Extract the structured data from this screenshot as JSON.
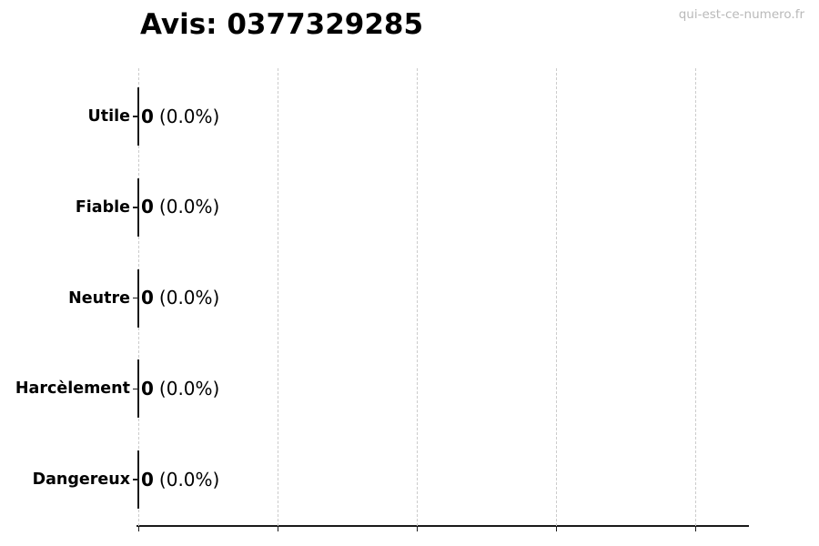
{
  "header": {
    "title": "Avis: 0377329285",
    "watermark": "qui-est-ce-numero.fr"
  },
  "chart_data": {
    "type": "bar",
    "orientation": "horizontal",
    "title": "Avis: 0377329285",
    "categories": [
      "Utile",
      "Fiable",
      "Neutre",
      "Harcèlement",
      "Dangereux"
    ],
    "values": [
      0,
      0,
      0,
      0,
      0
    ],
    "percents": [
      "0.0%",
      "0.0%",
      "0.0%",
      "0.0%",
      "0.0%"
    ],
    "value_labels": [
      "0 (0.0%)",
      "0 (0.0%)",
      "0 (0.0%)",
      "0 (0.0%)",
      "0 (0.0%)"
    ],
    "xlabel": "",
    "ylabel": "",
    "xlim": [
      0,
      1
    ],
    "x_tick_count": 5,
    "x_tick_labels_visible": false,
    "grid": {
      "axis": "x",
      "style": "dashed",
      "color": "#cccccc"
    },
    "legend": null,
    "bar_color": "#1a1a1a"
  },
  "colors": {
    "background": "#ffffff",
    "text": "#000000",
    "axis": "#1a1a1a",
    "grid": "#cccccc",
    "watermark": "#b9b9b9"
  }
}
